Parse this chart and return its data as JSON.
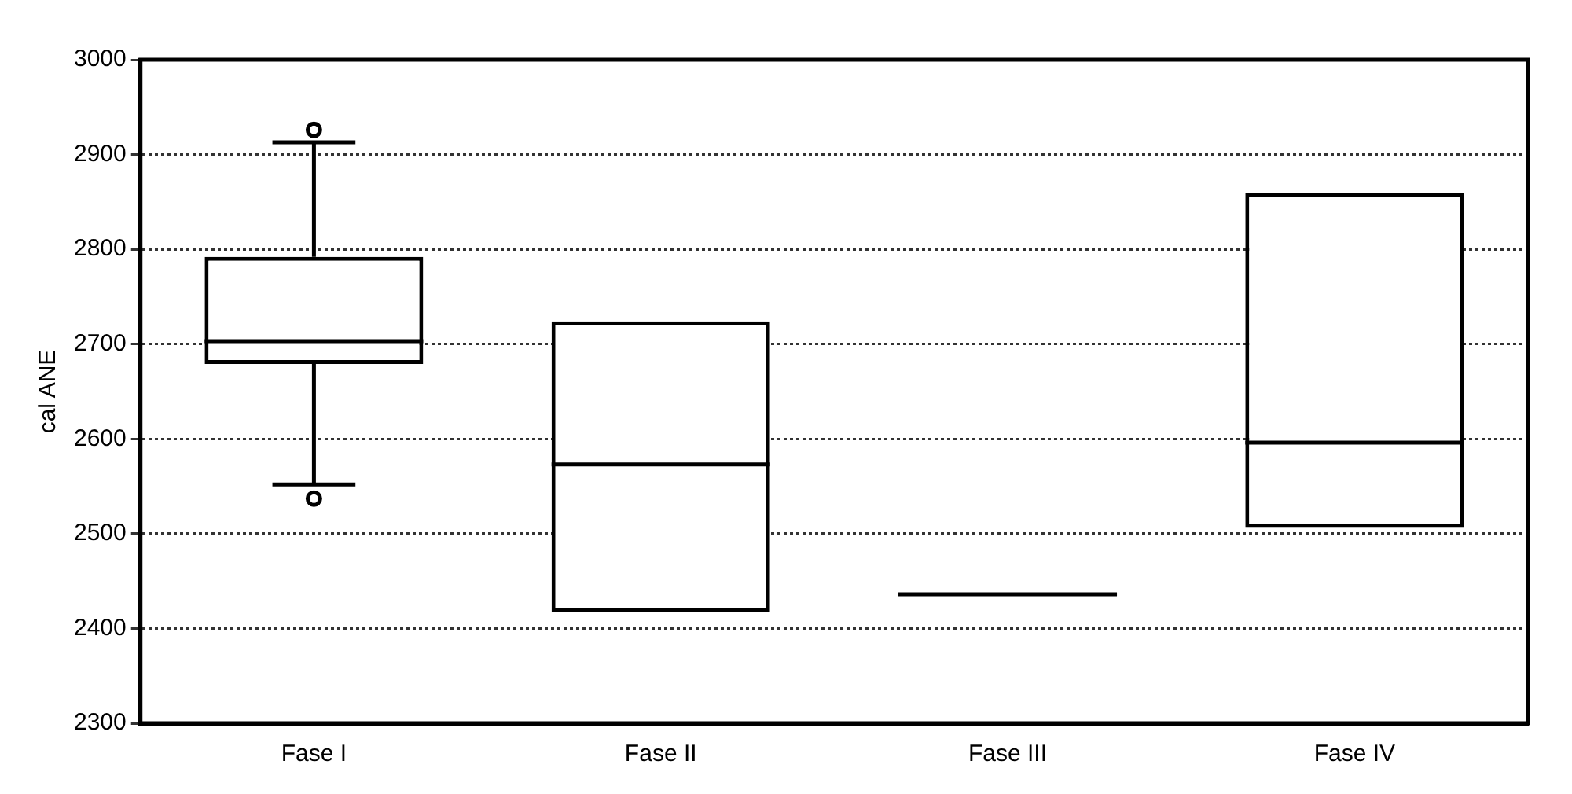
{
  "chart_data": {
    "type": "box",
    "ylabel": "cal ANE",
    "categories": [
      "Fase I",
      "Fase II",
      "Fase III",
      "Fase IV"
    ],
    "series": [
      {
        "color": "#000000",
        "boxes": [
          {
            "low": 2552,
            "q1": 2679,
            "median": 2703,
            "q3": 2792,
            "high": 2913,
            "outliers": [
              2926,
              2537
            ]
          },
          {
            "low": 2417,
            "q1": 2417,
            "median": 2573,
            "q3": 2724,
            "high": 2724
          },
          {
            "low": 2436,
            "q1": 2436,
            "median": 2436,
            "q3": 2436,
            "high": 2436
          },
          {
            "low": 2506,
            "q1": 2506,
            "median": 2596,
            "q3": 2859,
            "high": 2859
          }
        ]
      }
    ],
    "ylim": [
      2300,
      3000
    ],
    "yticks": [
      2300,
      2400,
      2500,
      2600,
      2700,
      2800,
      2900,
      3000
    ],
    "grid": "y"
  }
}
